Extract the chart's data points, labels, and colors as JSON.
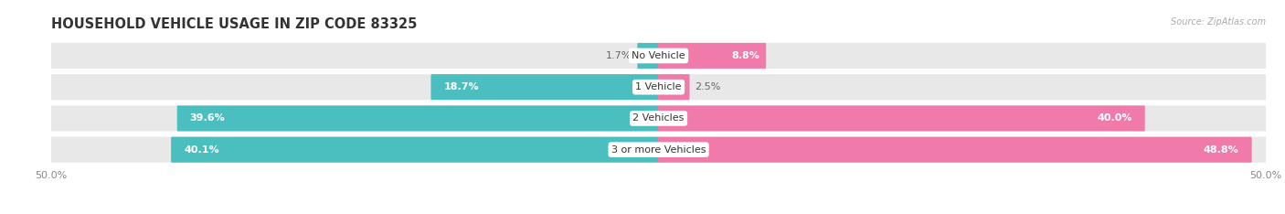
{
  "title": "HOUSEHOLD VEHICLE USAGE IN ZIP CODE 83325",
  "source": "Source: ZipAtlas.com",
  "categories": [
    "No Vehicle",
    "1 Vehicle",
    "2 Vehicles",
    "3 or more Vehicles"
  ],
  "owner_values": [
    1.7,
    18.7,
    39.6,
    40.1
  ],
  "renter_values": [
    8.8,
    2.5,
    40.0,
    48.8
  ],
  "owner_color": "#4bbfbf",
  "renter_color": "#f07aaa",
  "bar_bg_color": "#e8e8e8",
  "bar_height": 0.62,
  "max_val": 50.0,
  "title_fontsize": 10.5,
  "label_fontsize": 8.0,
  "axis_label_fontsize": 8.0,
  "legend_fontsize": 8.5,
  "background_color": "#ffffff"
}
